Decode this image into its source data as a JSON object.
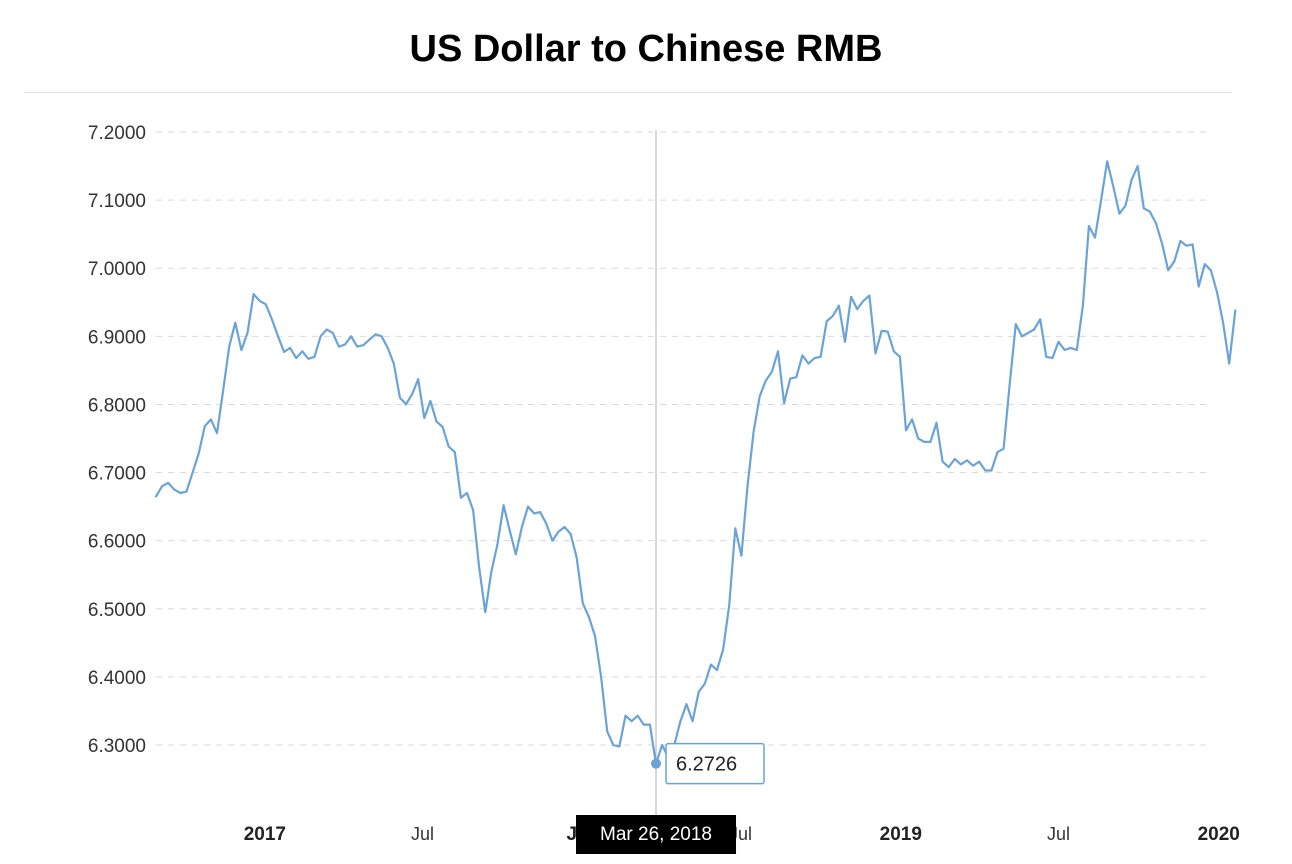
{
  "chart_data": {
    "type": "line",
    "title": "US Dollar to Chinese RMB",
    "xlabel": "",
    "ylabel": "",
    "ylim": [
      6.22,
      7.2
    ],
    "xlim": [
      "2016-08-29",
      "2019-12-30"
    ],
    "y_ticks": [
      "7.2000",
      "7.1000",
      "7.0000",
      "6.9000",
      "6.8000",
      "6.7000",
      "6.6000",
      "6.5000",
      "6.4000",
      "6.3000"
    ],
    "x_ticks": [
      {
        "label": "2017",
        "date": "2017-01-01",
        "bold": true
      },
      {
        "label": "Jul",
        "date": "2017-07-01",
        "bold": false
      },
      {
        "label": "Jan",
        "date": "2018-01-01",
        "bold": true
      },
      {
        "label": "Jul",
        "date": "2018-07-01",
        "bold": false
      },
      {
        "label": "2019",
        "date": "2019-01-01",
        "bold": true
      },
      {
        "label": "Jul",
        "date": "2019-07-01",
        "bold": false
      },
      {
        "label": "2020",
        "date": "2020-01-01",
        "bold": true
      }
    ],
    "grid": true,
    "line_color": "#6aa3d8",
    "series": [
      {
        "name": "",
        "points": [
          [
            "2016-08-29",
            6.665
          ],
          [
            "2016-09-05",
            6.68
          ],
          [
            "2016-09-12",
            6.685
          ],
          [
            "2016-09-19",
            6.675
          ],
          [
            "2016-09-26",
            6.67
          ],
          [
            "2016-10-03",
            6.672
          ],
          [
            "2016-10-10",
            6.7
          ],
          [
            "2016-10-17",
            6.728
          ],
          [
            "2016-10-24",
            6.768
          ],
          [
            "2016-10-31",
            6.778
          ],
          [
            "2016-11-07",
            6.758
          ],
          [
            "2016-11-14",
            6.82
          ],
          [
            "2016-11-21",
            6.885
          ],
          [
            "2016-11-28",
            6.92
          ],
          [
            "2016-12-05",
            6.88
          ],
          [
            "2016-12-12",
            6.905
          ],
          [
            "2016-12-19",
            6.962
          ],
          [
            "2016-12-26",
            6.952
          ],
          [
            "2017-01-02",
            6.947
          ],
          [
            "2017-01-09",
            6.925
          ],
          [
            "2017-01-16",
            6.9
          ],
          [
            "2017-01-23",
            6.877
          ],
          [
            "2017-01-30",
            6.883
          ],
          [
            "2017-02-06",
            6.868
          ],
          [
            "2017-02-13",
            6.878
          ],
          [
            "2017-02-20",
            6.867
          ],
          [
            "2017-02-27",
            6.87
          ],
          [
            "2017-03-06",
            6.9
          ],
          [
            "2017-03-13",
            6.91
          ],
          [
            "2017-03-20",
            6.905
          ],
          [
            "2017-03-27",
            6.885
          ],
          [
            "2017-04-03",
            6.888
          ],
          [
            "2017-04-10",
            6.9
          ],
          [
            "2017-04-17",
            6.885
          ],
          [
            "2017-04-24",
            6.887
          ],
          [
            "2017-05-01",
            6.895
          ],
          [
            "2017-05-08",
            6.903
          ],
          [
            "2017-05-15",
            6.9
          ],
          [
            "2017-05-22",
            6.883
          ],
          [
            "2017-05-29",
            6.86
          ],
          [
            "2017-06-05",
            6.81
          ],
          [
            "2017-06-12",
            6.8
          ],
          [
            "2017-06-19",
            6.815
          ],
          [
            "2017-06-26",
            6.837
          ],
          [
            "2017-07-03",
            6.78
          ],
          [
            "2017-07-10",
            6.805
          ],
          [
            "2017-07-17",
            6.775
          ],
          [
            "2017-07-24",
            6.767
          ],
          [
            "2017-07-31",
            6.738
          ],
          [
            "2017-08-07",
            6.73
          ],
          [
            "2017-08-14",
            6.663
          ],
          [
            "2017-08-21",
            6.67
          ],
          [
            "2017-08-28",
            6.645
          ],
          [
            "2017-09-04",
            6.56
          ],
          [
            "2017-09-11",
            6.495
          ],
          [
            "2017-09-18",
            6.555
          ],
          [
            "2017-09-25",
            6.595
          ],
          [
            "2017-10-02",
            6.652
          ],
          [
            "2017-10-09",
            6.615
          ],
          [
            "2017-10-16",
            6.58
          ],
          [
            "2017-10-23",
            6.62
          ],
          [
            "2017-10-30",
            6.65
          ],
          [
            "2017-11-06",
            6.64
          ],
          [
            "2017-11-13",
            6.642
          ],
          [
            "2017-11-20",
            6.625
          ],
          [
            "2017-11-27",
            6.6
          ],
          [
            "2017-12-04",
            6.613
          ],
          [
            "2017-12-11",
            6.62
          ],
          [
            "2017-12-18",
            6.61
          ],
          [
            "2017-12-25",
            6.575
          ],
          [
            "2018-01-01",
            6.508
          ],
          [
            "2018-01-08",
            6.488
          ],
          [
            "2018-01-15",
            6.46
          ],
          [
            "2018-01-22",
            6.4
          ],
          [
            "2018-01-29",
            6.32
          ],
          [
            "2018-02-05",
            6.3
          ],
          [
            "2018-02-12",
            6.298
          ],
          [
            "2018-02-19",
            6.343
          ],
          [
            "2018-02-26",
            6.335
          ],
          [
            "2018-03-05",
            6.343
          ],
          [
            "2018-03-12",
            6.33
          ],
          [
            "2018-03-19",
            6.33
          ],
          [
            "2018-03-26",
            6.2726
          ],
          [
            "2018-04-02",
            6.3
          ],
          [
            "2018-04-09",
            6.282
          ],
          [
            "2018-04-16",
            6.3
          ],
          [
            "2018-04-23",
            6.335
          ],
          [
            "2018-04-30",
            6.36
          ],
          [
            "2018-05-07",
            6.335
          ],
          [
            "2018-05-14",
            6.378
          ],
          [
            "2018-05-21",
            6.39
          ],
          [
            "2018-05-28",
            6.418
          ],
          [
            "2018-06-04",
            6.41
          ],
          [
            "2018-06-11",
            6.44
          ],
          [
            "2018-06-18",
            6.505
          ],
          [
            "2018-06-25",
            6.618
          ],
          [
            "2018-07-02",
            6.578
          ],
          [
            "2018-07-09",
            6.68
          ],
          [
            "2018-07-16",
            6.76
          ],
          [
            "2018-07-23",
            6.812
          ],
          [
            "2018-07-30",
            6.835
          ],
          [
            "2018-08-06",
            6.848
          ],
          [
            "2018-08-13",
            6.878
          ],
          [
            "2018-08-20",
            6.802
          ],
          [
            "2018-08-27",
            6.838
          ],
          [
            "2018-09-03",
            6.84
          ],
          [
            "2018-09-10",
            6.872
          ],
          [
            "2018-09-17",
            6.86
          ],
          [
            "2018-09-24",
            6.868
          ],
          [
            "2018-10-01",
            6.87
          ],
          [
            "2018-10-08",
            6.922
          ],
          [
            "2018-10-15",
            6.93
          ],
          [
            "2018-10-22",
            6.945
          ],
          [
            "2018-10-29",
            6.892
          ],
          [
            "2018-11-05",
            6.958
          ],
          [
            "2018-11-12",
            6.94
          ],
          [
            "2018-11-19",
            6.952
          ],
          [
            "2018-11-26",
            6.96
          ],
          [
            "2018-12-03",
            6.875
          ],
          [
            "2018-12-10",
            6.908
          ],
          [
            "2018-12-17",
            6.907
          ],
          [
            "2018-12-24",
            6.878
          ],
          [
            "2018-12-31",
            6.87
          ],
          [
            "2019-01-07",
            6.762
          ],
          [
            "2019-01-14",
            6.778
          ],
          [
            "2019-01-21",
            6.75
          ],
          [
            "2019-01-28",
            6.745
          ],
          [
            "2019-02-04",
            6.745
          ],
          [
            "2019-02-11",
            6.773
          ],
          [
            "2019-02-18",
            6.716
          ],
          [
            "2019-02-25",
            6.708
          ],
          [
            "2019-03-04",
            6.72
          ],
          [
            "2019-03-11",
            6.712
          ],
          [
            "2019-03-18",
            6.718
          ],
          [
            "2019-03-25",
            6.71
          ],
          [
            "2019-04-01",
            6.716
          ],
          [
            "2019-04-08",
            6.703
          ],
          [
            "2019-04-15",
            6.703
          ],
          [
            "2019-04-22",
            6.73
          ],
          [
            "2019-04-29",
            6.735
          ],
          [
            "2019-05-06",
            6.83
          ],
          [
            "2019-05-13",
            6.918
          ],
          [
            "2019-05-20",
            6.9
          ],
          [
            "2019-05-27",
            6.905
          ],
          [
            "2019-06-03",
            6.91
          ],
          [
            "2019-06-10",
            6.925
          ],
          [
            "2019-06-17",
            6.87
          ],
          [
            "2019-06-24",
            6.868
          ],
          [
            "2019-07-01",
            6.892
          ],
          [
            "2019-07-08",
            6.88
          ],
          [
            "2019-07-15",
            6.883
          ],
          [
            "2019-07-22",
            6.88
          ],
          [
            "2019-07-29",
            6.945
          ],
          [
            "2019-08-05",
            7.062
          ],
          [
            "2019-08-12",
            7.045
          ],
          [
            "2019-08-19",
            7.1
          ],
          [
            "2019-08-26",
            7.157
          ],
          [
            "2019-09-02",
            7.12
          ],
          [
            "2019-09-09",
            7.08
          ],
          [
            "2019-09-16",
            7.092
          ],
          [
            "2019-09-23",
            7.13
          ],
          [
            "2019-09-30",
            7.15
          ],
          [
            "2019-10-07",
            7.088
          ],
          [
            "2019-10-14",
            7.083
          ],
          [
            "2019-10-21",
            7.066
          ],
          [
            "2019-10-28",
            7.036
          ],
          [
            "2019-11-04",
            6.997
          ],
          [
            "2019-11-11",
            7.01
          ],
          [
            "2019-11-18",
            7.04
          ],
          [
            "2019-11-25",
            7.033
          ],
          [
            "2019-12-02",
            7.035
          ],
          [
            "2019-12-09",
            6.973
          ],
          [
            "2019-12-16",
            7.006
          ],
          [
            "2019-12-23",
            6.997
          ],
          [
            "2019-12-30",
            6.965
          ],
          [
            "2020-01-06",
            6.92
          ],
          [
            "2020-01-13",
            6.86
          ],
          [
            "2020-01-20",
            6.938
          ]
        ]
      }
    ],
    "tooltip": {
      "date": "2018-03-26",
      "date_label": "Mar 26, 2018",
      "value": 6.2726,
      "value_label": "6.2726"
    }
  }
}
